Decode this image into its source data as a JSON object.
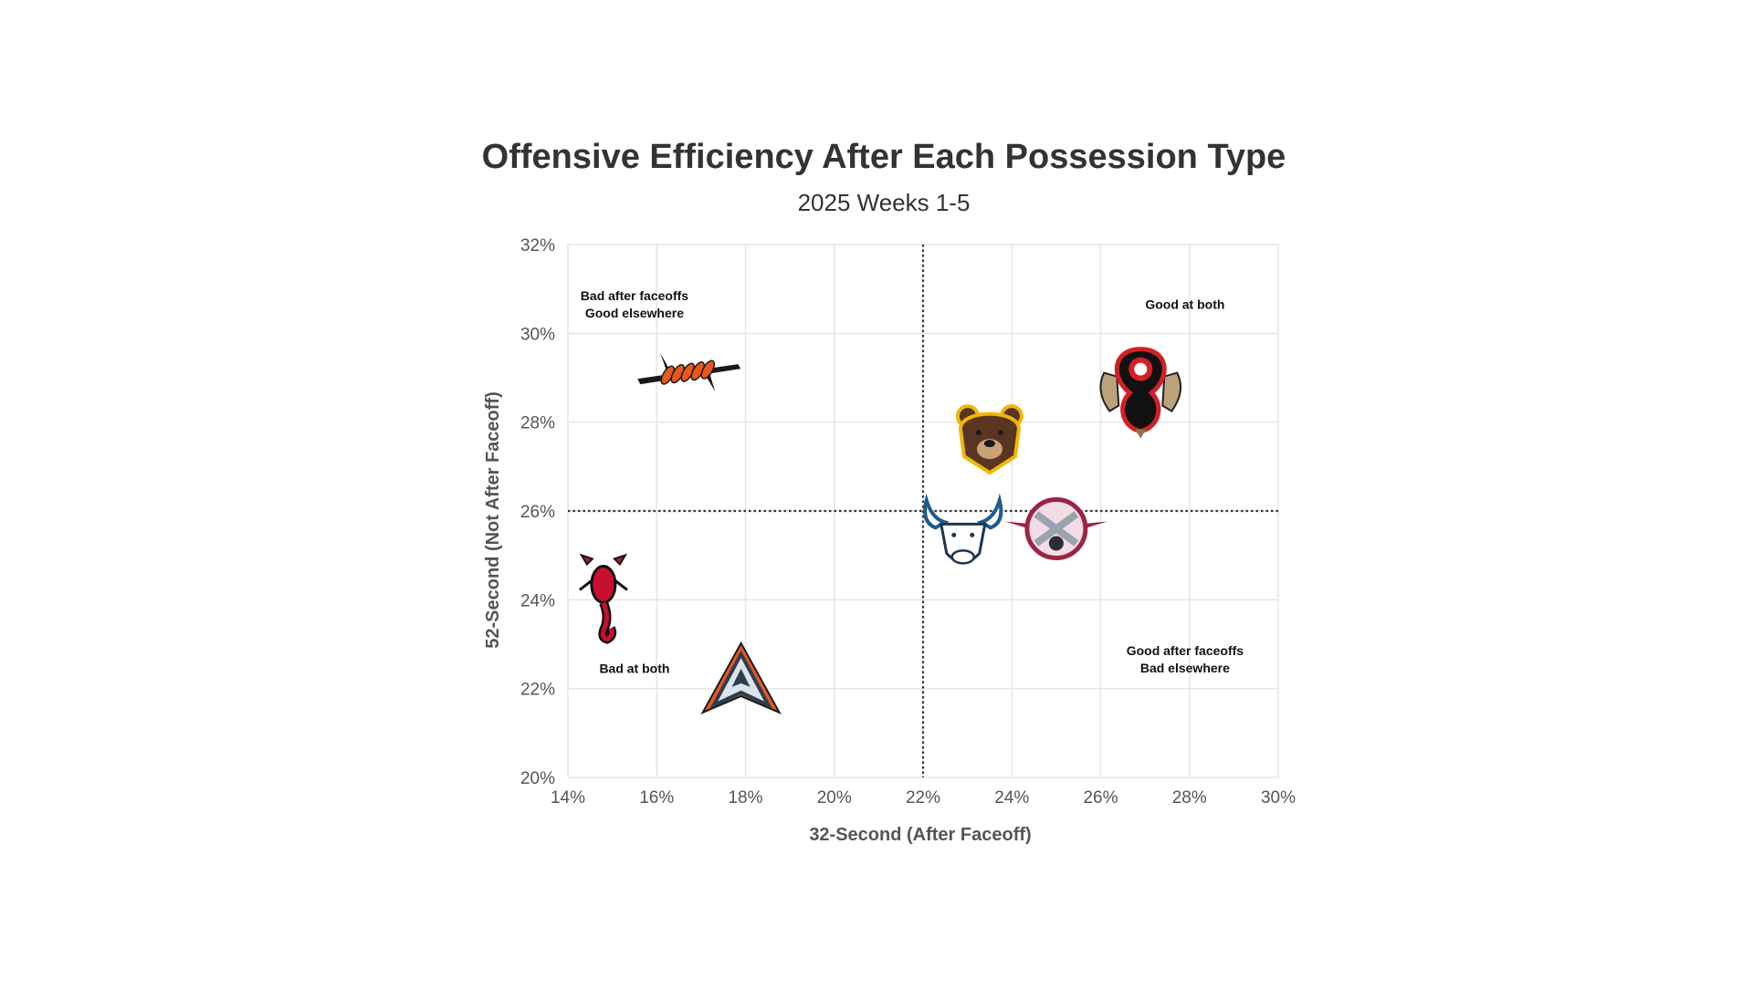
{
  "chart_data": {
    "type": "scatter",
    "title": "Offensive Efficiency After Each Possession Type",
    "subtitle": "2025 Weeks 1-5",
    "xlabel": "32-Second (After Faceoff)",
    "ylabel": "52-Second (Not After Faceoff)",
    "xlim": [
      14,
      30
    ],
    "ylim": [
      20,
      32
    ],
    "x_ticks": [
      "14%",
      "16%",
      "18%",
      "20%",
      "22%",
      "24%",
      "26%",
      "28%",
      "30%"
    ],
    "y_ticks": [
      "32%",
      "30%",
      "28%",
      "26%",
      "24%",
      "22%",
      "20%"
    ],
    "grid": true,
    "reference_lines": {
      "x": 22,
      "y": 26
    },
    "quadrant_labels": [
      {
        "lines": [
          "Bad after faceoffs",
          "Good elsewhere"
        ],
        "x": 15.5,
        "y": 30.75
      },
      {
        "lines": [
          "Good at both"
        ],
        "x": 27.9,
        "y": 30.55
      },
      {
        "lines": [
          "Bad at both"
        ],
        "x": 15.5,
        "y": 22.35
      },
      {
        "lines": [
          "Good after faceoffs",
          "Bad elsewhere"
        ],
        "x": 27.9,
        "y": 22.75
      }
    ],
    "points": [
      {
        "icon": "barbed-wire-logo",
        "x": 16.7,
        "y": 29.1,
        "color": "#e8581c"
      },
      {
        "icon": "hound-logo",
        "x": 26.9,
        "y": 28.7,
        "color": "#d41f26"
      },
      {
        "icon": "bear-logo",
        "x": 23.5,
        "y": 27.6,
        "color": "#5a3520"
      },
      {
        "icon": "bull-logo",
        "x": 22.9,
        "y": 25.5,
        "color": "#1f5a8c"
      },
      {
        "icon": "crossed-sticks-logo",
        "x": 25.0,
        "y": 25.6,
        "color": "#9c2347"
      },
      {
        "icon": "scorpion-logo",
        "x": 14.8,
        "y": 24.1,
        "color": "#c8102e"
      },
      {
        "icon": "arrowhead-logo",
        "x": 17.9,
        "y": 22.2,
        "color": "#e8581c"
      }
    ]
  }
}
